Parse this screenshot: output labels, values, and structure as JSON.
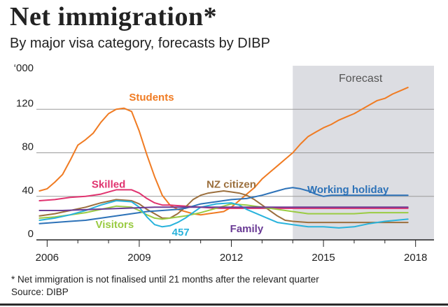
{
  "header": {
    "title": "Net immigration*",
    "subtitle": "By major visa category, forecasts by DIBP"
  },
  "footer": {
    "note": "* Net immigration is not finalised until 21 months after the relevant quarter",
    "source": "Source: DIBP"
  },
  "chart_data": {
    "type": "line",
    "y_unit_label": "‘000",
    "y_ticks": [
      0,
      40,
      80,
      120
    ],
    "ylim": [
      0,
      160
    ],
    "xlim": [
      2005.65,
      2018.6
    ],
    "x_ticks": [
      2006,
      2009,
      2012,
      2015,
      2018
    ],
    "x_tick_labels": [
      "2006",
      "2009",
      "2012",
      "2015",
      "2018"
    ],
    "grid": true,
    "shaded_region": {
      "from": 2014,
      "to": 2018.6,
      "label": "Forecast",
      "color": "#dcdde2"
    },
    "series": [
      {
        "name": "Students",
        "color": "#f07b22",
        "label_x": 2009.4,
        "label_y": 128,
        "points": [
          [
            2005.75,
            45
          ],
          [
            2006.0,
            47
          ],
          [
            2006.25,
            53
          ],
          [
            2006.5,
            60
          ],
          [
            2006.75,
            73
          ],
          [
            2007.0,
            87
          ],
          [
            2007.25,
            92
          ],
          [
            2007.5,
            98
          ],
          [
            2007.75,
            108
          ],
          [
            2008.0,
            116
          ],
          [
            2008.25,
            120
          ],
          [
            2008.5,
            121
          ],
          [
            2008.75,
            118
          ],
          [
            2009.0,
            100
          ],
          [
            2009.25,
            78
          ],
          [
            2009.5,
            58
          ],
          [
            2009.75,
            41
          ],
          [
            2010.0,
            32
          ],
          [
            2010.25,
            28
          ],
          [
            2010.5,
            26
          ],
          [
            2010.75,
            24
          ],
          [
            2011.0,
            23
          ],
          [
            2011.25,
            24
          ],
          [
            2011.5,
            25
          ],
          [
            2011.75,
            26
          ],
          [
            2012.0,
            30
          ],
          [
            2012.25,
            36
          ],
          [
            2012.5,
            42
          ],
          [
            2012.75,
            48
          ],
          [
            2013.0,
            56
          ],
          [
            2013.25,
            62
          ],
          [
            2013.5,
            68
          ],
          [
            2013.75,
            74
          ],
          [
            2014.0,
            80
          ],
          [
            2014.25,
            88
          ],
          [
            2014.5,
            95
          ],
          [
            2014.75,
            99
          ],
          [
            2015.0,
            103
          ],
          [
            2015.25,
            106
          ],
          [
            2015.5,
            110
          ],
          [
            2015.75,
            113
          ],
          [
            2016.0,
            116
          ],
          [
            2016.25,
            120
          ],
          [
            2016.5,
            124
          ],
          [
            2016.75,
            128
          ],
          [
            2017.0,
            130
          ],
          [
            2017.25,
            134
          ],
          [
            2017.5,
            137
          ],
          [
            2017.75,
            140
          ]
        ]
      },
      {
        "name": "Skilled",
        "color": "#e0336f",
        "label_x": 2008.0,
        "label_y": 48,
        "points": [
          [
            2005.75,
            36
          ],
          [
            2006.25,
            37
          ],
          [
            2006.75,
            39
          ],
          [
            2007.25,
            40
          ],
          [
            2007.75,
            42
          ],
          [
            2008.25,
            46
          ],
          [
            2008.75,
            46
          ],
          [
            2009.0,
            43
          ],
          [
            2009.25,
            38
          ],
          [
            2009.5,
            34
          ],
          [
            2009.75,
            32
          ],
          [
            2010.0,
            32
          ],
          [
            2010.5,
            31
          ],
          [
            2011.0,
            30
          ],
          [
            2011.5,
            29
          ],
          [
            2012.0,
            29
          ],
          [
            2012.5,
            29
          ],
          [
            2013.0,
            29
          ],
          [
            2013.5,
            29
          ],
          [
            2014.0,
            29
          ],
          [
            2014.5,
            29
          ],
          [
            2015.0,
            29
          ],
          [
            2015.5,
            29
          ],
          [
            2016.0,
            29
          ],
          [
            2016.5,
            29
          ],
          [
            2017.0,
            29
          ],
          [
            2017.75,
            29
          ]
        ]
      },
      {
        "name": "NZ citizen",
        "color": "#9b6f3d",
        "label_x": 2012.0,
        "label_y": 48,
        "points": [
          [
            2005.75,
            22
          ],
          [
            2006.25,
            24
          ],
          [
            2006.75,
            27
          ],
          [
            2007.25,
            30
          ],
          [
            2007.75,
            34
          ],
          [
            2008.25,
            37
          ],
          [
            2008.75,
            36
          ],
          [
            2009.0,
            33
          ],
          [
            2009.25,
            28
          ],
          [
            2009.5,
            24
          ],
          [
            2009.75,
            20
          ],
          [
            2010.0,
            20
          ],
          [
            2010.25,
            24
          ],
          [
            2010.5,
            30
          ],
          [
            2010.75,
            37
          ],
          [
            2011.0,
            41
          ],
          [
            2011.25,
            43
          ],
          [
            2011.5,
            44
          ],
          [
            2011.75,
            45
          ],
          [
            2012.0,
            44
          ],
          [
            2012.25,
            43
          ],
          [
            2012.5,
            41
          ],
          [
            2012.75,
            37
          ],
          [
            2013.0,
            32
          ],
          [
            2013.25,
            27
          ],
          [
            2013.5,
            22
          ],
          [
            2013.75,
            18
          ],
          [
            2014.0,
            17
          ],
          [
            2014.5,
            16
          ],
          [
            2015.0,
            16
          ],
          [
            2015.5,
            16
          ],
          [
            2016.0,
            16
          ],
          [
            2016.5,
            16
          ],
          [
            2017.0,
            16
          ],
          [
            2017.75,
            16
          ]
        ]
      },
      {
        "name": "Working holiday",
        "color": "#2d72b8",
        "label_x": 2015.8,
        "label_y": 43,
        "points": [
          [
            2005.75,
            15
          ],
          [
            2006.25,
            16
          ],
          [
            2006.75,
            17
          ],
          [
            2007.25,
            18
          ],
          [
            2007.75,
            20
          ],
          [
            2008.25,
            22
          ],
          [
            2008.75,
            24
          ],
          [
            2009.25,
            26
          ],
          [
            2009.75,
            27
          ],
          [
            2010.25,
            28
          ],
          [
            2010.5,
            29
          ],
          [
            2011.0,
            33
          ],
          [
            2011.5,
            35
          ],
          [
            2012.0,
            37
          ],
          [
            2012.5,
            38
          ],
          [
            2013.0,
            41
          ],
          [
            2013.5,
            45
          ],
          [
            2013.75,
            47
          ],
          [
            2014.0,
            48
          ],
          [
            2014.25,
            47
          ],
          [
            2014.5,
            45
          ],
          [
            2014.75,
            42
          ],
          [
            2015.0,
            40
          ],
          [
            2015.25,
            41
          ],
          [
            2015.5,
            41
          ],
          [
            2016.0,
            41
          ],
          [
            2016.5,
            41
          ],
          [
            2017.0,
            41
          ],
          [
            2017.75,
            41
          ]
        ]
      },
      {
        "name": "Visitors",
        "color": "#9acb43",
        "label_x": 2008.2,
        "label_y": 11,
        "points": [
          [
            2005.75,
            20
          ],
          [
            2006.25,
            21
          ],
          [
            2006.75,
            23
          ],
          [
            2007.25,
            25
          ],
          [
            2007.75,
            28
          ],
          [
            2008.25,
            31
          ],
          [
            2008.75,
            30
          ],
          [
            2009.0,
            27
          ],
          [
            2009.25,
            23
          ],
          [
            2009.5,
            20
          ],
          [
            2009.75,
            19
          ],
          [
            2010.0,
            20
          ],
          [
            2010.5,
            22
          ],
          [
            2011.0,
            25
          ],
          [
            2011.5,
            29
          ],
          [
            2012.0,
            33
          ],
          [
            2012.5,
            32
          ],
          [
            2013.0,
            30
          ],
          [
            2013.5,
            28
          ],
          [
            2014.0,
            26
          ],
          [
            2014.5,
            24
          ],
          [
            2015.0,
            24
          ],
          [
            2015.5,
            24
          ],
          [
            2016.0,
            24
          ],
          [
            2016.5,
            25
          ],
          [
            2017.0,
            25
          ],
          [
            2017.75,
            25
          ]
        ]
      },
      {
        "name": "457",
        "color": "#29b3dc",
        "label_x": 2010.35,
        "label_y": 4,
        "points": [
          [
            2005.75,
            18
          ],
          [
            2006.25,
            20
          ],
          [
            2006.75,
            23
          ],
          [
            2007.25,
            27
          ],
          [
            2007.75,
            32
          ],
          [
            2008.25,
            36
          ],
          [
            2008.75,
            35
          ],
          [
            2009.0,
            30
          ],
          [
            2009.25,
            21
          ],
          [
            2009.5,
            14
          ],
          [
            2009.75,
            12
          ],
          [
            2010.0,
            13
          ],
          [
            2010.25,
            16
          ],
          [
            2010.5,
            20
          ],
          [
            2010.75,
            25
          ],
          [
            2011.0,
            30
          ],
          [
            2011.5,
            33
          ],
          [
            2012.0,
            34
          ],
          [
            2012.25,
            32
          ],
          [
            2012.5,
            28
          ],
          [
            2013.0,
            22
          ],
          [
            2013.5,
            16
          ],
          [
            2014.0,
            14
          ],
          [
            2014.5,
            12
          ],
          [
            2015.0,
            12
          ],
          [
            2015.5,
            11
          ],
          [
            2016.0,
            12
          ],
          [
            2016.5,
            15
          ],
          [
            2017.0,
            17
          ],
          [
            2017.75,
            19
          ]
        ]
      },
      {
        "name": "Family",
        "color": "#6a3b95",
        "label_x": 2012.5,
        "label_y": 7,
        "points": [
          [
            2005.75,
            27
          ],
          [
            2006.5,
            27
          ],
          [
            2007.5,
            28
          ],
          [
            2008.5,
            29
          ],
          [
            2009.5,
            30
          ],
          [
            2010.5,
            30
          ],
          [
            2011.5,
            30
          ],
          [
            2012.5,
            30
          ],
          [
            2013.5,
            30
          ],
          [
            2014.5,
            30
          ],
          [
            2015.5,
            30
          ],
          [
            2016.5,
            30
          ],
          [
            2017.75,
            30
          ]
        ]
      }
    ]
  }
}
